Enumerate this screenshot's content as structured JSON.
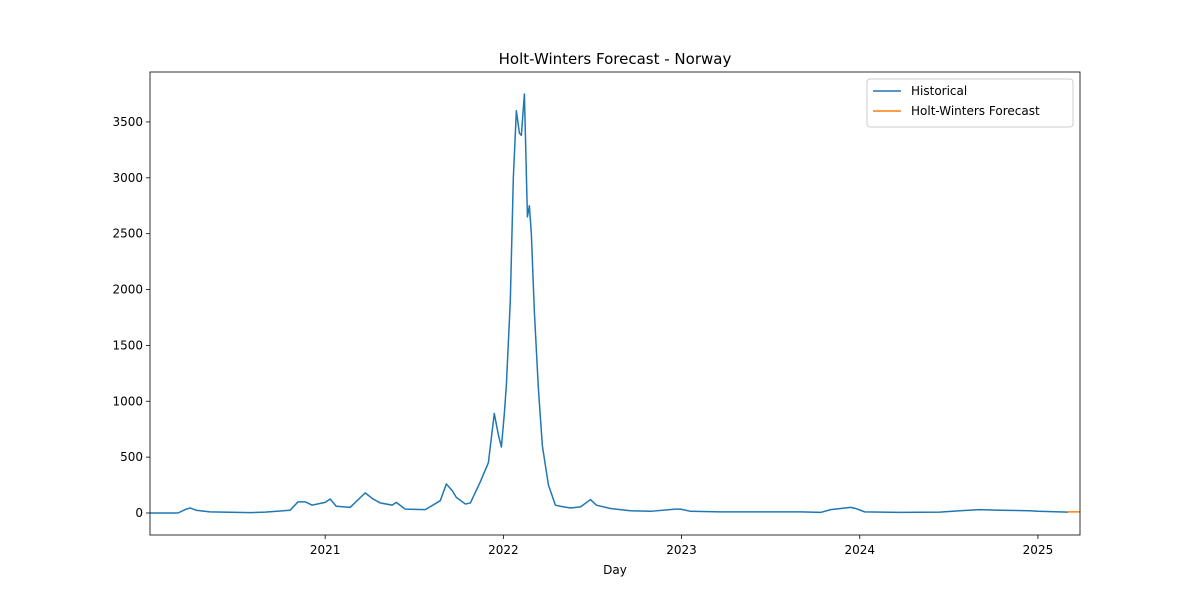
{
  "chart_data": {
    "type": "line",
    "title": "Holt-Winters Forecast - Norway",
    "xlabel": "Day",
    "xlim": [
      2020.017,
      2025.236
    ],
    "xticks": [
      2021,
      2022,
      2023,
      2024,
      2025
    ],
    "ylim": [
      -197,
      3947
    ],
    "yticks": [
      0,
      500,
      1000,
      1500,
      2000,
      2500,
      3000,
      3500
    ],
    "grid": false,
    "legend": "upper right",
    "series": [
      {
        "name": "Historical",
        "color": "#1f77b4",
        "x": [
          2020.017,
          2020.174,
          2020.213,
          2020.242,
          2020.275,
          2020.354,
          2020.579,
          2020.663,
          2020.747,
          2020.803,
          2020.848,
          2020.888,
          2020.927,
          2021.0,
          2021.028,
          2021.062,
          2021.14,
          2021.225,
          2021.264,
          2021.309,
          2021.376,
          2021.399,
          2021.449,
          2021.562,
          2021.646,
          2021.68,
          2021.713,
          2021.736,
          2021.787,
          2021.815,
          2021.871,
          2021.916,
          2021.949,
          2021.972,
          2021.989,
          2022.006,
          2022.017,
          2022.039,
          2022.056,
          2022.073,
          2022.09,
          2022.101,
          2022.118,
          2022.135,
          2022.146,
          2022.157,
          2022.174,
          2022.197,
          2022.219,
          2022.253,
          2022.292,
          2022.32,
          2022.376,
          2022.433,
          2022.489,
          2022.522,
          2022.601,
          2022.713,
          2022.826,
          2022.966,
          2022.994,
          2023.051,
          2023.219,
          2023.444,
          2023.669,
          2023.781,
          2023.837,
          2023.949,
          2023.978,
          2024.028,
          2024.225,
          2024.449,
          2024.562,
          2024.674,
          2024.787,
          2024.955,
          2025.0,
          2025.169
        ],
        "values": [
          0,
          0,
          30,
          45,
          25,
          10,
          3,
          8,
          18,
          25,
          100,
          100,
          70,
          95,
          125,
          60,
          50,
          180,
          130,
          90,
          70,
          95,
          35,
          30,
          110,
          260,
          200,
          140,
          80,
          90,
          280,
          450,
          890,
          700,
          590,
          900,
          1150,
          1900,
          3000,
          3600,
          3400,
          3380,
          3750,
          2650,
          2750,
          2500,
          1800,
          1100,
          600,
          250,
          70,
          60,
          45,
          55,
          120,
          70,
          40,
          20,
          15,
          35,
          35,
          15,
          10,
          10,
          10,
          5,
          30,
          50,
          40,
          10,
          5,
          8,
          20,
          30,
          25,
          20,
          15,
          8
        ]
      },
      {
        "name": "Holt-Winters Forecast",
        "color": "#ff7f0e",
        "x": [
          2025.169,
          2025.236
        ],
        "values": [
          10,
          10
        ]
      }
    ]
  }
}
